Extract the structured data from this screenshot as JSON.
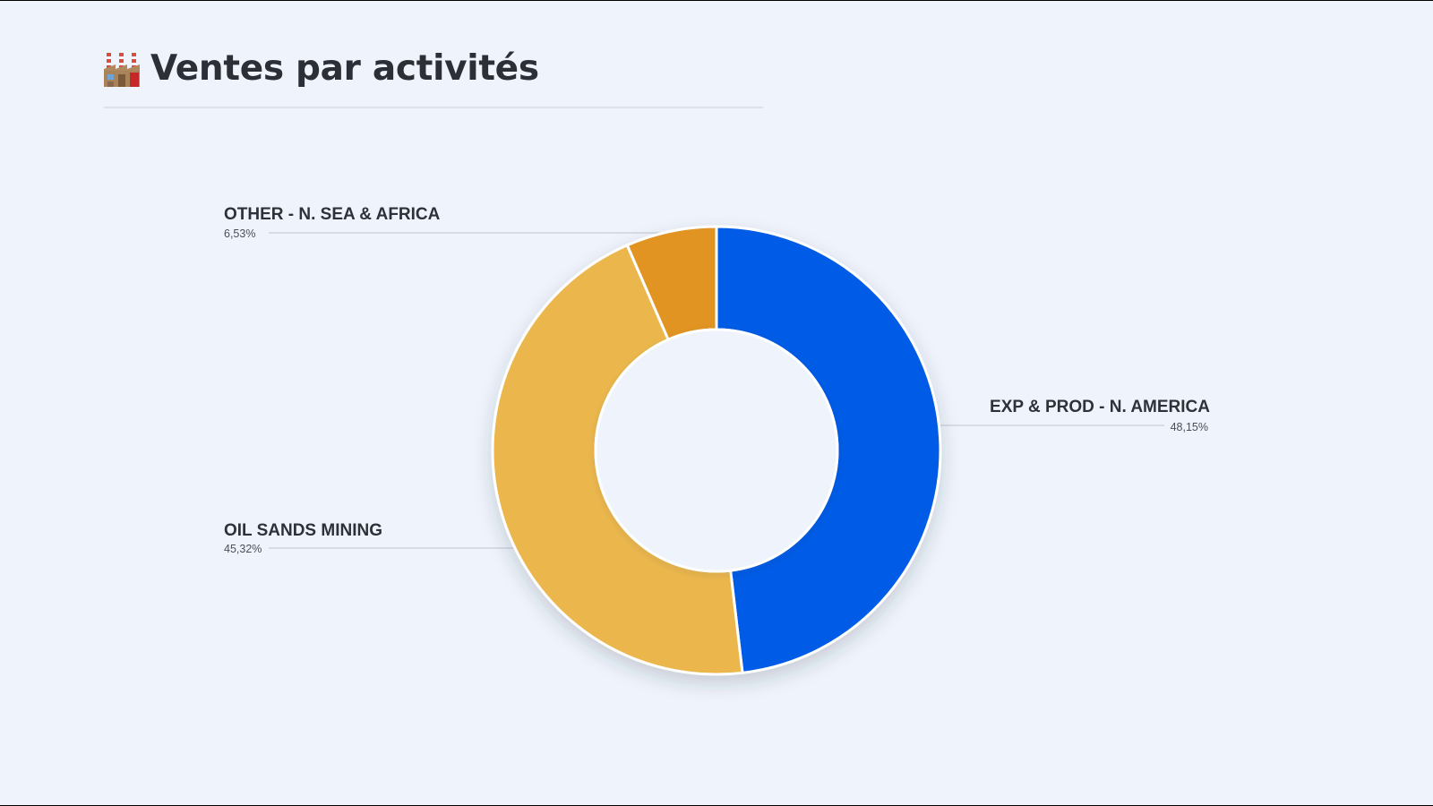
{
  "header": {
    "title": "Ventes par activités",
    "icon": "factory-icon"
  },
  "colors": {
    "background": "#eff3fb",
    "exp_prod": "#055ce6",
    "oil_sands": "#ebb74d",
    "other": "#e19422",
    "leader": "#c9ced8"
  },
  "chart_data": {
    "type": "pie",
    "variant": "donut",
    "title": "Ventes par activités",
    "categories": [
      "EXP & PROD - N. AMERICA",
      "OIL SANDS MINING",
      "OTHER - N. SEA & AFRICA"
    ],
    "values": [
      48.15,
      45.32,
      6.53
    ],
    "value_labels": [
      "48,15%",
      "45,32%",
      "6,53%"
    ],
    "colors": [
      "#055ce6",
      "#ebb74d",
      "#e19422"
    ],
    "legend": "none",
    "labels_position": "outside with leader lines"
  }
}
